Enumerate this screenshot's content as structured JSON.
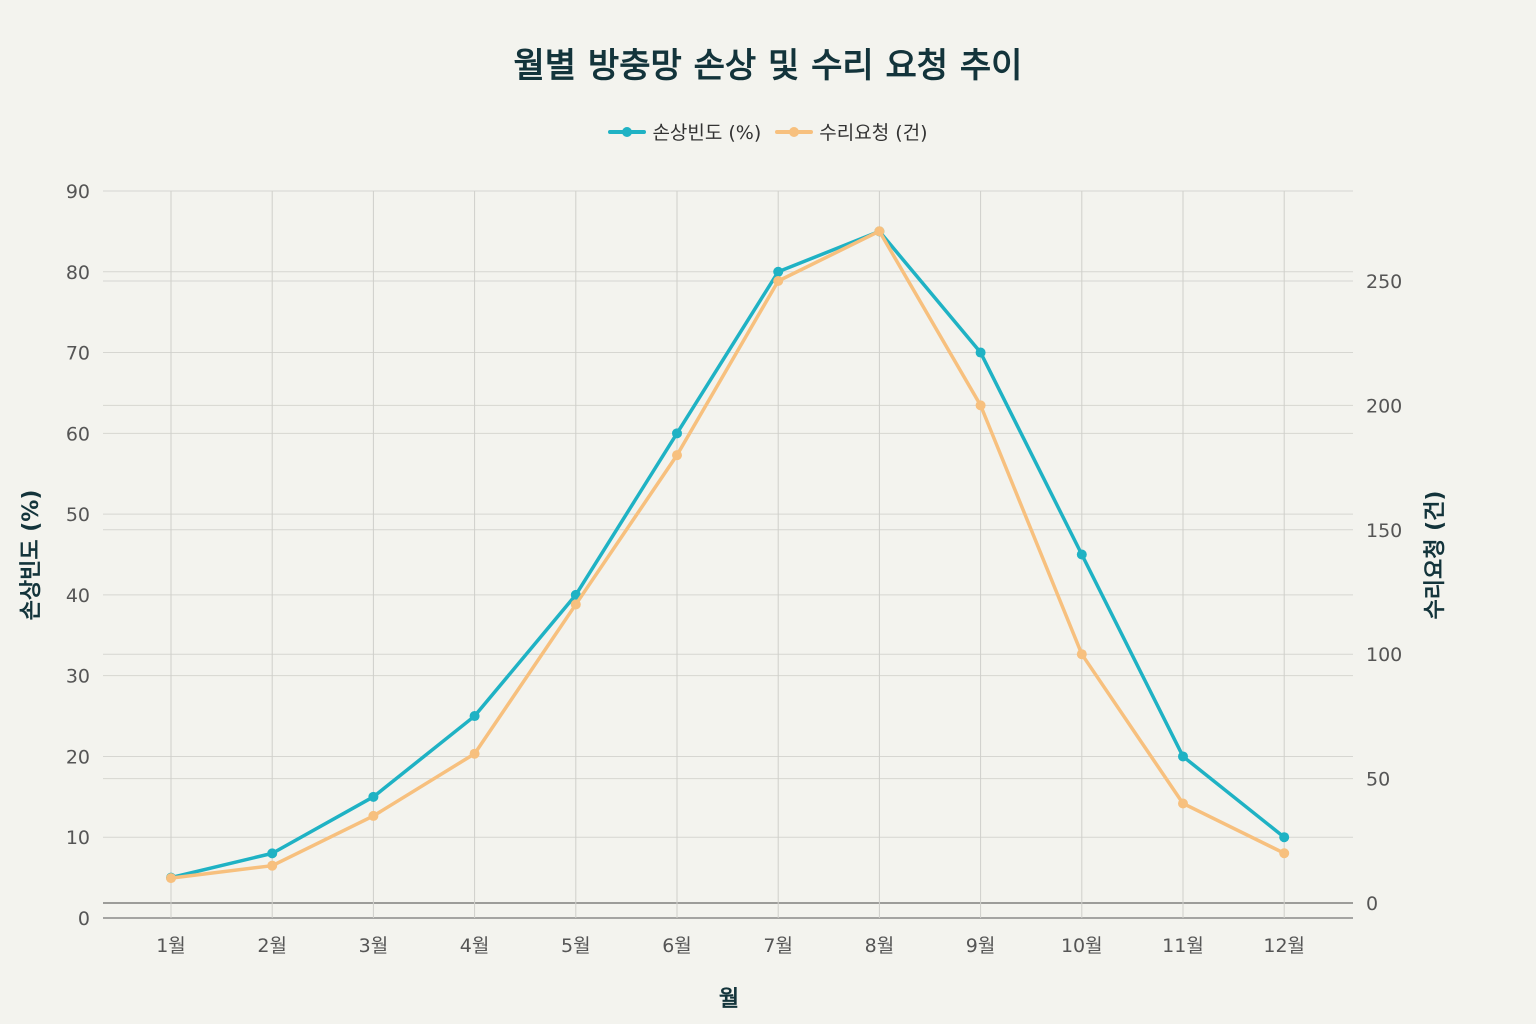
{
  "chart_data": {
    "type": "line",
    "title": "월별 방충망 손상 및 수리 요청 추이",
    "xlabel": "월",
    "ylabel": "손상빈도 (%)",
    "y2label": "수리요청 (건)",
    "categories": [
      "1월",
      "2월",
      "3월",
      "4월",
      "5월",
      "6월",
      "7월",
      "8월",
      "9월",
      "10월",
      "11월",
      "12월"
    ],
    "ylim": [
      0,
      90
    ],
    "y2lim": [
      0,
      290
    ],
    "yticks": [
      0,
      10,
      20,
      30,
      40,
      50,
      60,
      70,
      80,
      90
    ],
    "y2ticks": [
      0,
      50,
      100,
      150,
      200,
      250
    ],
    "grid": true,
    "legend_position": "top-center",
    "series": [
      {
        "name": "손상빈도 (%)",
        "axis": "left",
        "color": "#1fb2c4",
        "values": [
          5,
          8,
          15,
          25,
          40,
          60,
          80,
          85,
          70,
          45,
          20,
          10
        ]
      },
      {
        "name": "수리요청 (건)",
        "axis": "right",
        "color": "#f7c07e",
        "values": [
          10,
          15,
          35,
          60,
          120,
          180,
          250,
          270,
          200,
          100,
          40,
          20
        ]
      }
    ]
  }
}
